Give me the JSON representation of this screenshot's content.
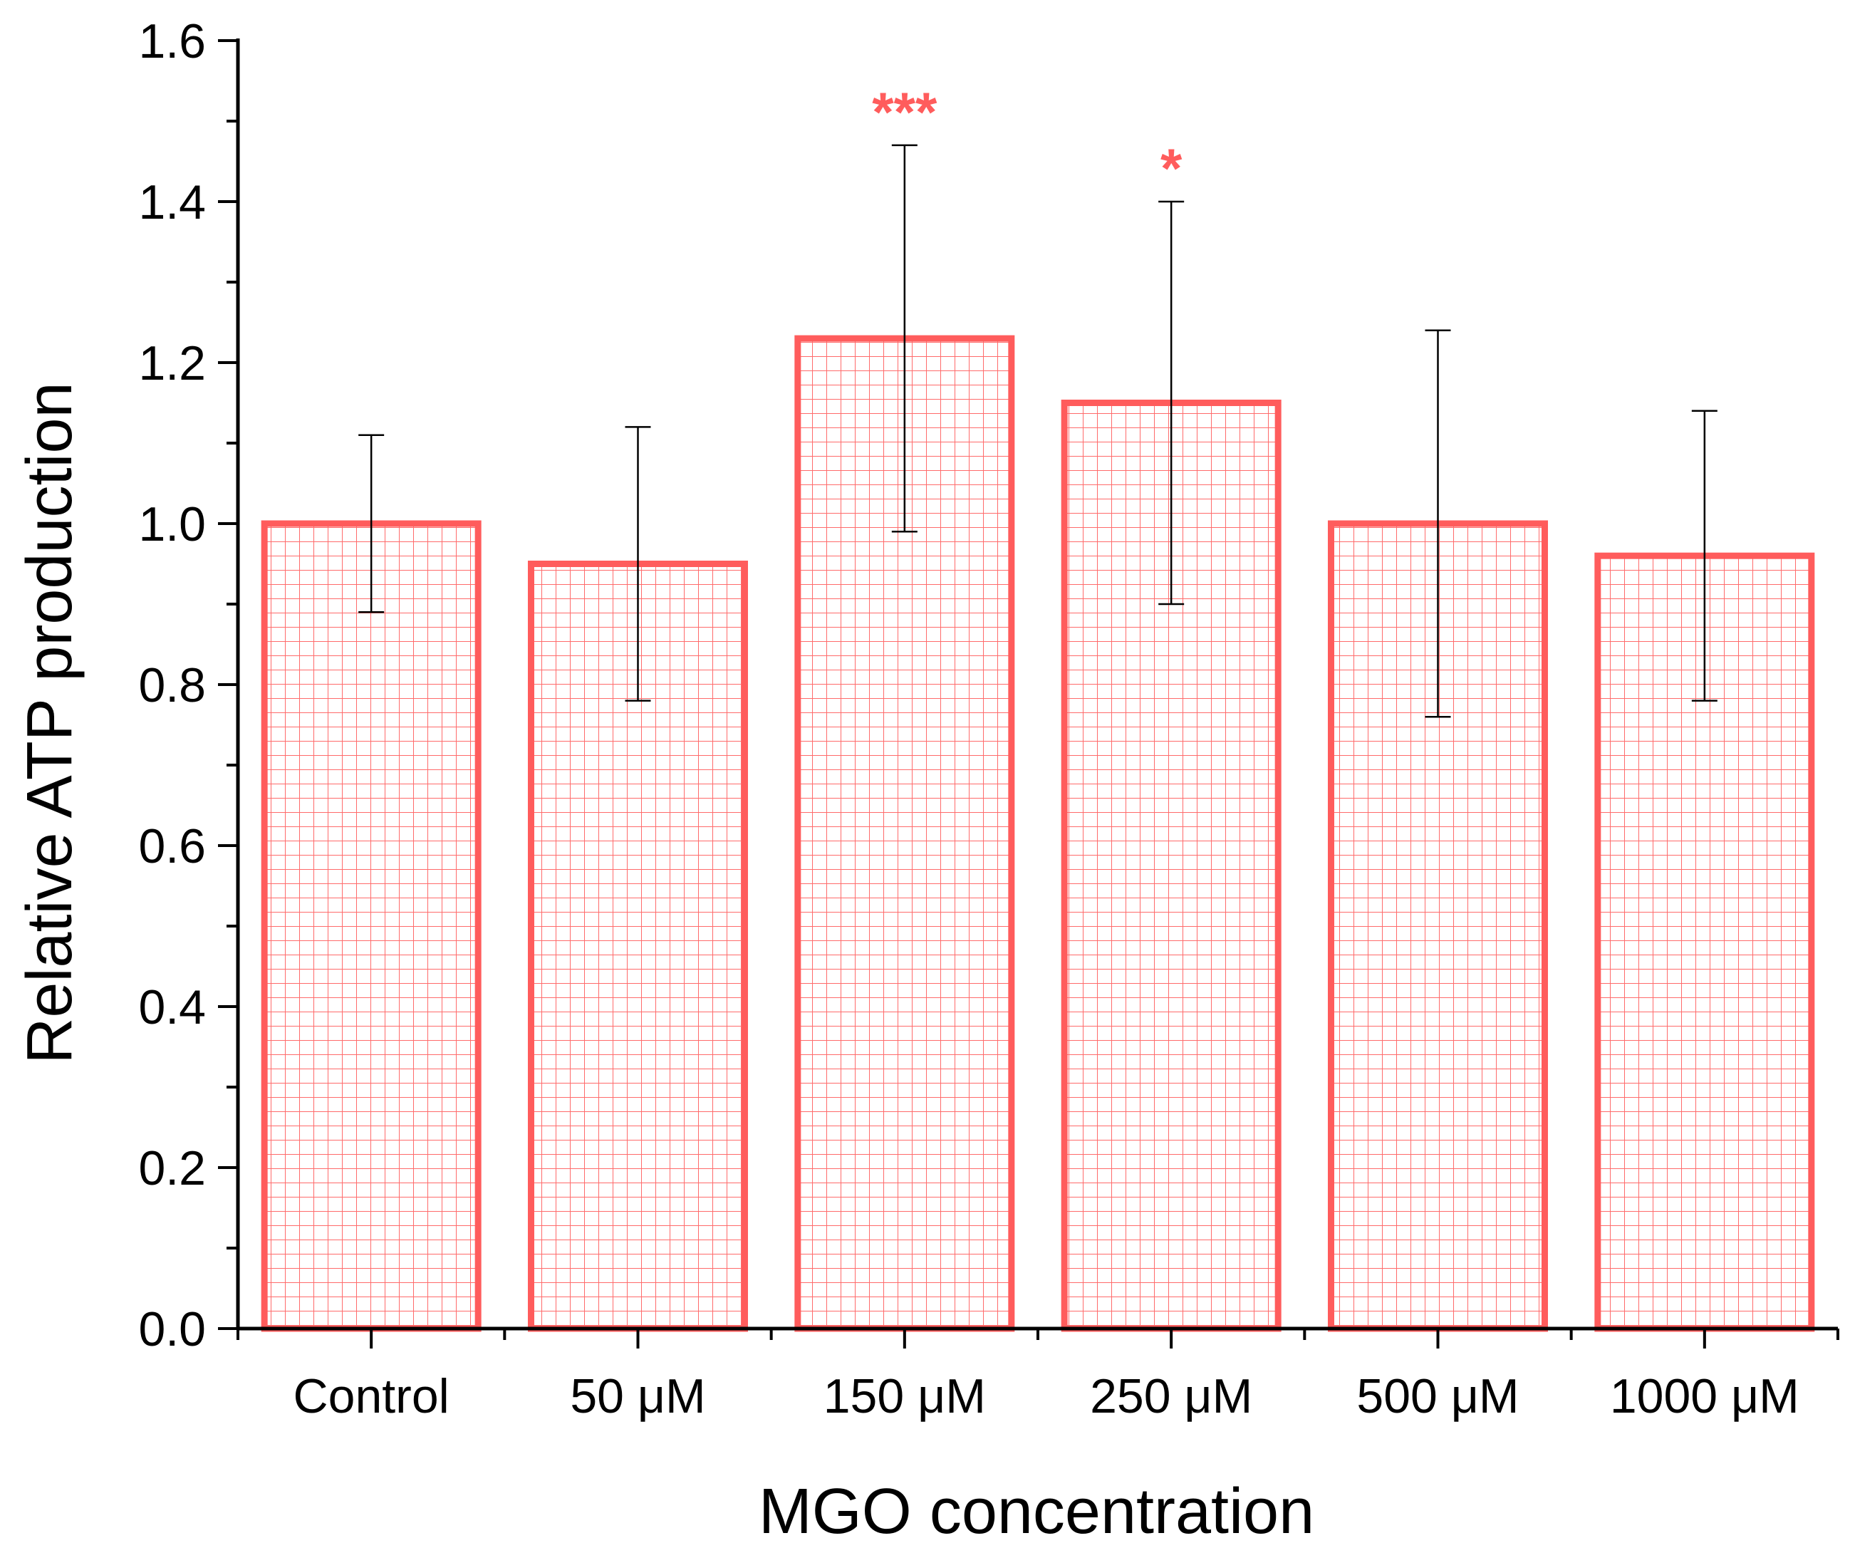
{
  "chart_data": {
    "type": "bar",
    "title": "",
    "xlabel": "MGO concentration",
    "ylabel": "Relative ATP production",
    "categories": [
      "Control",
      "50 μM",
      "150 μM",
      "250 μM",
      "500 μM",
      "1000 μM"
    ],
    "series": [
      {
        "name": "Relative ATP production",
        "values": [
          1.0,
          0.95,
          1.23,
          1.15,
          1.0,
          0.96
        ],
        "error_low": [
          0.89,
          0.78,
          0.99,
          0.9,
          0.76,
          0.78
        ],
        "error_high": [
          1.11,
          1.12,
          1.47,
          1.4,
          1.24,
          1.14
        ]
      }
    ],
    "significance": [
      "",
      "",
      "***",
      "*",
      "",
      ""
    ],
    "ylim": [
      0,
      1.6
    ],
    "yticks": [
      "0.0",
      "0.2",
      "0.4",
      "0.6",
      "0.8",
      "1.0",
      "1.2",
      "1.4",
      "1.6"
    ],
    "grid": false,
    "legend": "none",
    "colors": {
      "bar": "#ff5c5c",
      "hatch": "#ff6b6b",
      "errorbar": "#000000",
      "significance": "#ff5c5c",
      "axis": "#000000"
    }
  }
}
